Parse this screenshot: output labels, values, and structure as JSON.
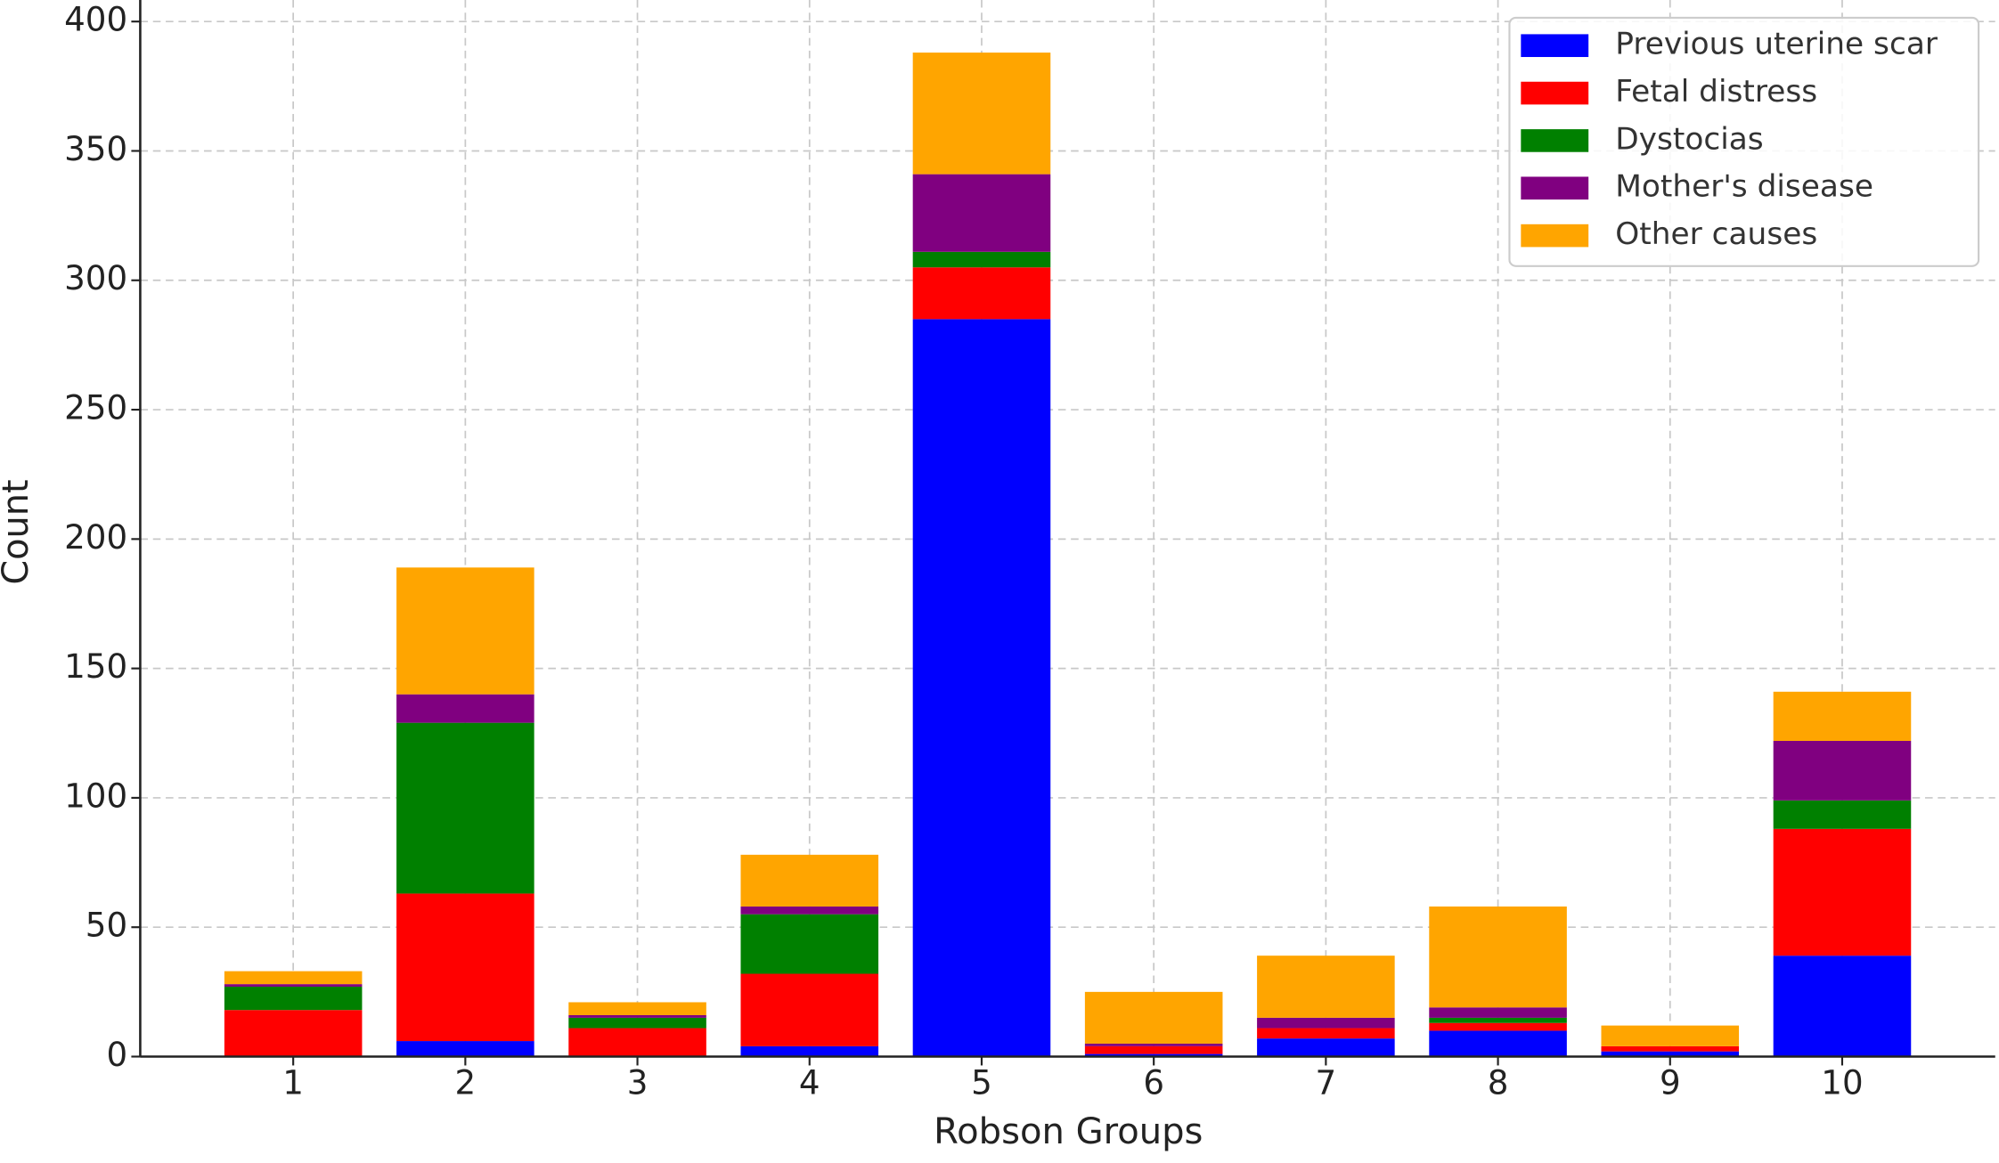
{
  "chart_data": {
    "type": "stacked_bar",
    "x_label": "Robson Groups",
    "y_label": "Count",
    "categories": [
      "1",
      "2",
      "3",
      "4",
      "5",
      "6",
      "7",
      "8",
      "9",
      "10"
    ],
    "series": [
      {
        "name": "Previous uterine scar",
        "color": "#0000ff",
        "values": [
          0,
          6,
          0,
          4,
          285,
          1,
          7,
          10,
          2,
          39
        ]
      },
      {
        "name": "Fetal distress",
        "color": "#ff0000",
        "values": [
          18,
          57,
          11,
          28,
          20,
          3,
          4,
          3,
          2,
          49
        ]
      },
      {
        "name": "Dystocias",
        "color": "#008000",
        "values": [
          9,
          66,
          4,
          23,
          6,
          0,
          0,
          2,
          0,
          11
        ]
      },
      {
        "name": "Mother's disease",
        "color": "#800080",
        "values": [
          1,
          11,
          1,
          3,
          30,
          1,
          4,
          4,
          0,
          23
        ]
      },
      {
        "name": "Other causes",
        "color": "#ffa500",
        "values": [
          5,
          49,
          5,
          20,
          47,
          20,
          24,
          39,
          8,
          19
        ]
      }
    ],
    "ylim": [
      0,
      400
    ],
    "yticks": [
      0,
      50,
      100,
      150,
      200,
      250,
      300,
      350,
      400
    ],
    "grid": true,
    "legend": "upper right"
  }
}
